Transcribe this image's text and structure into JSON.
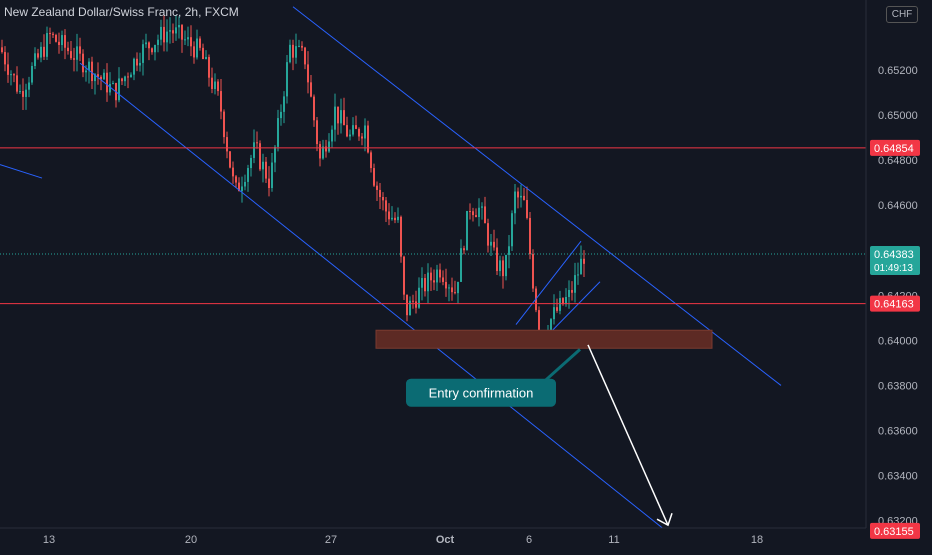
{
  "header": {
    "title": "New Zealand Dollar/Swiss Franc, 2h, FXCM"
  },
  "currency_badge": "CHF",
  "chart_data": {
    "type": "candlestick",
    "title": "New Zealand Dollar/Swiss Franc, 2h, FXCM",
    "ylim": [
      0.6307,
      0.6551
    ],
    "y_ticks": [
      "0.65200",
      "0.65000",
      "0.64800",
      "0.64600",
      "0.64200",
      "0.64000",
      "0.63800",
      "0.63600",
      "0.63400",
      "0.63200"
    ],
    "x_ticks": [
      "13",
      "20",
      "27",
      "Oct",
      "6",
      "11",
      "18"
    ],
    "price_levels": [
      {
        "value": 0.64854,
        "label": "0.64854"
      },
      {
        "value": 0.64163,
        "label": "0.64163"
      },
      {
        "value": 0.63155,
        "label": "0.63155"
      }
    ],
    "current_price": {
      "value": 0.64383,
      "label": "0.64383",
      "countdown": "01:49:13"
    },
    "annotation": "Entry confirmation",
    "colors": {
      "up": "#26a69a",
      "down": "#ef5350",
      "level": "#f23645",
      "channel": "#2962ff",
      "zone": "#5d2a24",
      "annotation_bg": "#0b6b73",
      "background": "#131722"
    }
  }
}
